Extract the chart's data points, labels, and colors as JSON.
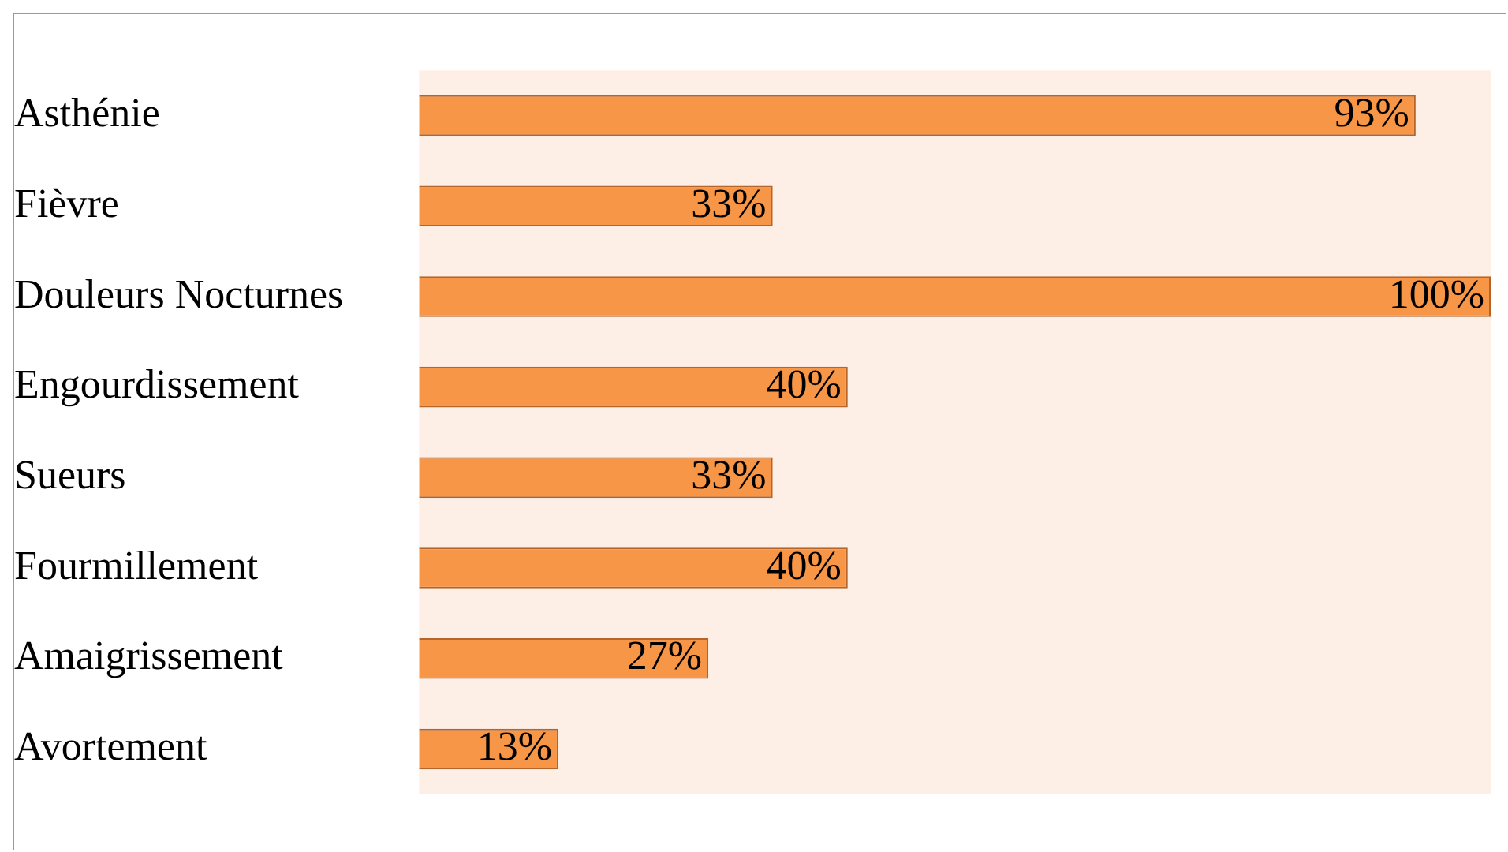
{
  "chart_data": {
    "type": "bar",
    "orientation": "horizontal",
    "categories": [
      "Asthénie",
      "Fièvre",
      "Douleurs Nocturnes",
      "Engourdissement",
      "Sueurs",
      "Fourmillement",
      "Amaigrissement",
      "Avortement"
    ],
    "values": [
      93,
      33,
      100,
      40,
      33,
      40,
      27,
      13
    ],
    "value_labels": [
      "93%",
      "33%",
      "100%",
      "40%",
      "33%",
      "40%",
      "27%",
      "13%"
    ],
    "color": "#f79646"
  }
}
